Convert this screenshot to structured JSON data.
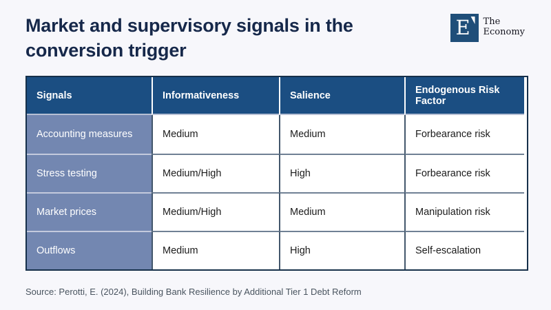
{
  "chart_data": {
    "type": "table",
    "title": "Market and supervisory signals in the conversion trigger",
    "columns": [
      "Signals",
      "Informativeness",
      "Salience",
      "Endogenous Risk Factor"
    ],
    "rows": [
      [
        "Accounting measures",
        "Medium",
        "Medium",
        "Forbearance risk"
      ],
      [
        "Stress testing",
        "Medium/High",
        "High",
        "Forbearance risk"
      ],
      [
        "Market prices",
        "Medium/High",
        "Medium",
        "Manipulation risk"
      ],
      [
        "Outflows",
        "Medium",
        "High",
        "Self-escalation"
      ]
    ],
    "source": "Source: Perotti, E. (2024), Building Bank Resilience by Additional Tier 1 Debt Reform"
  },
  "logo": {
    "letter": "E",
    "name_line1": "The",
    "name_line2": "Economy"
  },
  "colors": {
    "page_background": "#f7f7fb",
    "title_text": "#16284a",
    "table_header_bg": "#1b4e82",
    "row_label_bg": "#7387b1",
    "outer_border": "#16304a",
    "data_vertical_divider": "#42566b",
    "data_horizontal_divider": "#6f8094",
    "label_horizontal_divider": "#c4cadd",
    "logo_square": "#1f4e79",
    "source_text": "#49545f"
  }
}
